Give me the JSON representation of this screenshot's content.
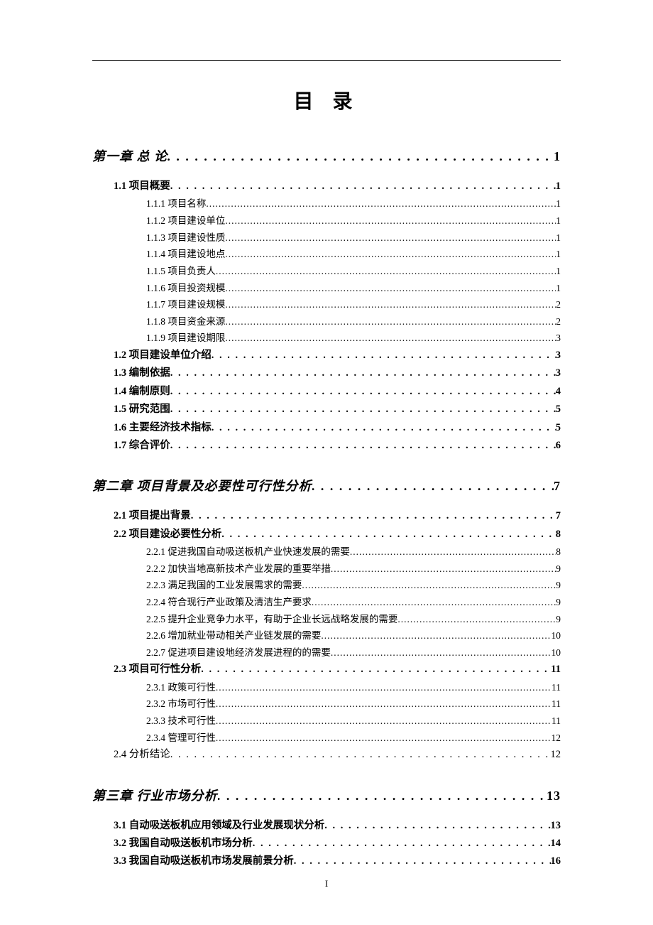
{
  "title": "目 录",
  "page_number": "I",
  "dots_loose": ". . . . . . . . . . . . . . . . . . . . . . . . . . . . . . . . . . . . . . . . . . . . . . . . . . . . . . . . . . . . . . . . . . . . . . . . . . . . . . . . . . . . . . . . . . . . . . . . . . . . . . . . . . . . . . . . . . . . . . . . . . . . . .",
  "dots_tight": "..........................................................................................................................................................................................................................................",
  "chapters": [
    {
      "title": "第一章 总 论",
      "page": "1",
      "sections": [
        {
          "label": "1.1 项目概要",
          "page": "1",
          "bold": true,
          "subs": [
            {
              "label": "1.1.1 项目名称",
              "page": "1"
            },
            {
              "label": "1.1.2 项目建设单位",
              "page": "1"
            },
            {
              "label": "1.1.3 项目建设性质",
              "page": "1"
            },
            {
              "label": "1.1.4 项目建设地点",
              "page": "1"
            },
            {
              "label": "1.1.5 项目负责人",
              "page": "1"
            },
            {
              "label": "1.1.6 项目投资规模",
              "page": "1"
            },
            {
              "label": "1.1.7 项目建设规模",
              "page": "2"
            },
            {
              "label": "1.1.8 项目资金来源",
              "page": "2"
            },
            {
              "label": "1.1.9 项目建设期限",
              "page": "3"
            }
          ]
        },
        {
          "label": "1.2 项目建设单位介绍",
          "page": "3",
          "bold": true,
          "subs": []
        },
        {
          "label": "1.3 编制依据",
          "page": "3",
          "bold": true,
          "subs": []
        },
        {
          "label": "1.4 编制原则",
          "page": "4",
          "bold": true,
          "subs": []
        },
        {
          "label": "1.5 研究范围",
          "page": "5",
          "bold": true,
          "subs": []
        },
        {
          "label": "1.6 主要经济技术指标",
          "page": "5",
          "bold": true,
          "subs": []
        },
        {
          "label": "1.7 综合评价",
          "page": "6",
          "bold": true,
          "subs": []
        }
      ]
    },
    {
      "title": "第二章 项目背景及必要性可行性分析",
      "page": "7",
      "sections": [
        {
          "label": "2.1 项目提出背景",
          "page": "7",
          "bold": true,
          "subs": []
        },
        {
          "label": "2.2 项目建设必要性分析",
          "page": "8",
          "bold": true,
          "subs": [
            {
              "label": "2.2.1 促进我国自动吸送板机产业快速发展的需要",
              "page": "8"
            },
            {
              "label": "2.2.2 加快当地高新技术产业发展的重要举措",
              "page": "9"
            },
            {
              "label": "2.2.3 满足我国的工业发展需求的需要",
              "page": "9"
            },
            {
              "label": "2.2.4 符合现行产业政策及清洁生产要求",
              "page": "9"
            },
            {
              "label": "2.2.5 提升企业竞争力水平，有助于企业长远战略发展的需要",
              "page": "9"
            },
            {
              "label": "2.2.6 增加就业带动相关产业链发展的需要",
              "page": "10"
            },
            {
              "label": "2.2.7 促进项目建设地经济发展进程的的需要",
              "page": "10"
            }
          ]
        },
        {
          "label": "2.3 项目可行性分析",
          "page": "11",
          "bold": true,
          "subs": [
            {
              "label": "2.3.1 政策可行性",
              "page": "11"
            },
            {
              "label": "2.3.2 市场可行性",
              "page": "11"
            },
            {
              "label": "2.3.3 技术可行性",
              "page": "11"
            },
            {
              "label": "2.3.4 管理可行性",
              "page": "12"
            }
          ]
        },
        {
          "label": "2.4 分析结论",
          "page": "12",
          "bold": false,
          "subs": []
        }
      ]
    },
    {
      "title": "第三章 行业市场分析",
      "page": "13",
      "sections": [
        {
          "label": "3.1 自动吸送板机应用领域及行业发展现状分析",
          "page": "13",
          "bold": true,
          "subs": []
        },
        {
          "label": "3.2 我国自动吸送板机市场分析",
          "page": "14",
          "bold": true,
          "subs": []
        },
        {
          "label": "3.3 我国自动吸送板机市场发展前景分析",
          "page": "16",
          "bold": true,
          "subs": []
        }
      ]
    }
  ]
}
